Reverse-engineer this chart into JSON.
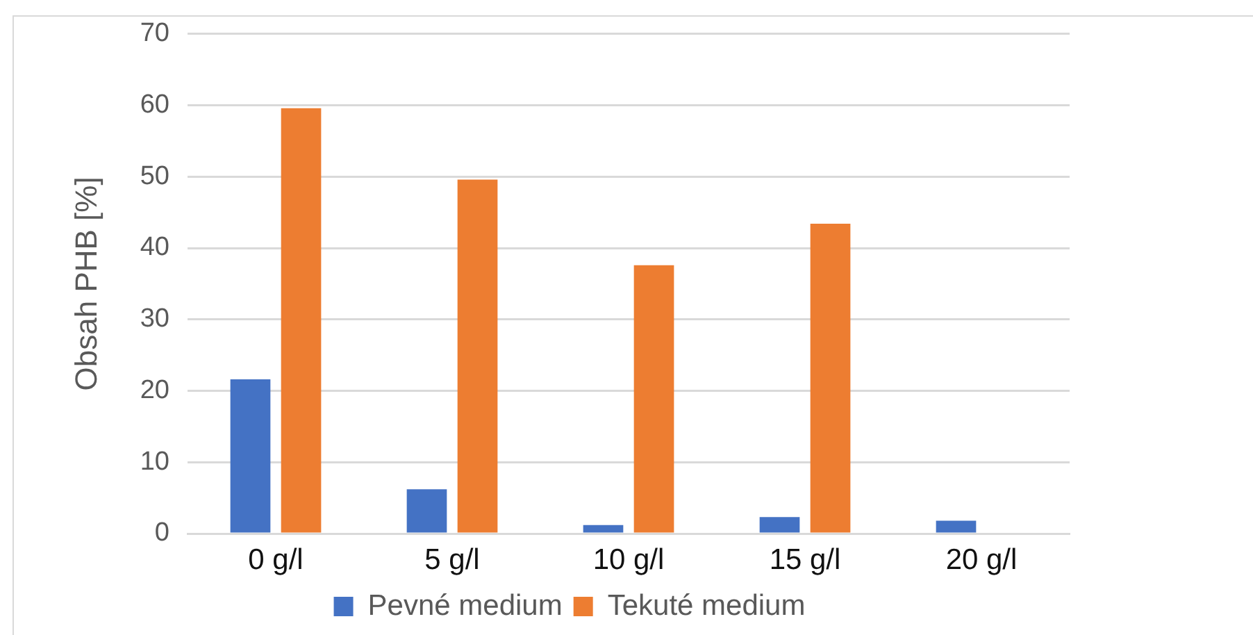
{
  "chart_data": {
    "type": "bar",
    "ylabel": "Obsah PHB [%]",
    "categories": [
      "0 g/l",
      "5 g/l",
      "10 g/l",
      "15 g/l",
      "20 g/l"
    ],
    "series": [
      {
        "name": "Pevné medium",
        "color": "#4472c4",
        "values": [
          21.6,
          6.2,
          1.2,
          2.3,
          1.8
        ]
      },
      {
        "name": "Tekuté medium",
        "color": "#ed7d31",
        "values": [
          59.6,
          49.6,
          37.6,
          43.4,
          null
        ]
      }
    ],
    "ylim": [
      0,
      70
    ],
    "yticks": [
      0,
      10,
      20,
      30,
      40,
      50,
      60,
      70
    ],
    "grid": "y",
    "legend": "bottom"
  }
}
